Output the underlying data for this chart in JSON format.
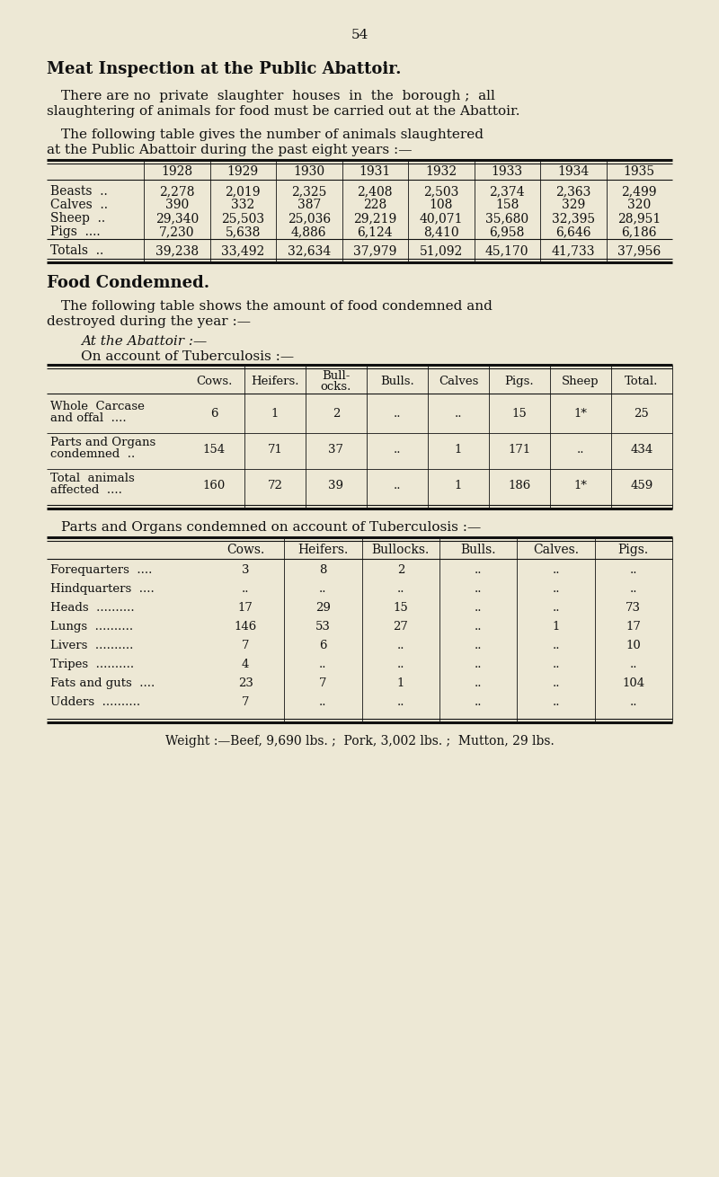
{
  "bg_color": "#ede8d5",
  "page_number": "54",
  "title": "Meat Inspection at the Public Abattoir.",
  "table1_headers": [
    "1928",
    "1929",
    "1930",
    "1931",
    "1932",
    "1933",
    "1934",
    "1935"
  ],
  "table1_rows": [
    [
      "Beasts  ..",
      "2,278",
      "2,019",
      "2,325",
      "2,408",
      "2,503",
      "2,374",
      "2,363",
      "2,499"
    ],
    [
      "Calves  ..",
      "390",
      "332",
      "387",
      "228",
      "108",
      "158",
      "329",
      "320"
    ],
    [
      "Sheep  ..",
      "29,340",
      "25,503",
      "25,036",
      "29,219",
      "40,071",
      "35,680",
      "32,395",
      "28,951"
    ],
    [
      "Pigs  ....",
      "7,230",
      "5,638",
      "4,886",
      "6,124",
      "8,410",
      "6,958",
      "6,646",
      "6,186"
    ]
  ],
  "table1_totals": [
    "Totals  ..",
    "39,238",
    "33,492",
    "32,634",
    "37,979",
    "51,092",
    "45,170",
    "41,733",
    "37,956"
  ],
  "food_condemned_title": "Food Condemned.",
  "table2_headers": [
    "",
    "Cows.",
    "Heifers.",
    "Bull-\nocks.",
    "Bulls.",
    "Calves",
    "Pigs.",
    "Sheep",
    "Total."
  ],
  "table2_rows": [
    [
      "Whole  Carcase\nand offal  ....",
      "6",
      "1",
      "2",
      "..",
      "..",
      "15",
      "1*",
      "25"
    ],
    [
      "Parts and Organs\ncondemned  ..",
      "154",
      "71",
      "37",
      "..",
      "1",
      "171",
      "..",
      "434"
    ],
    [
      "Total  animals\naffected  ....",
      "160",
      "72",
      "39",
      "..",
      "1",
      "186",
      "1*",
      "459"
    ]
  ],
  "parts_organs_title": "Parts and Organs condemned on account of Tuberculosis :—",
  "table3_headers": [
    "",
    "Cows.",
    "Heifers.",
    "Bullocks.",
    "Bulls.",
    "Calves.",
    "Pigs."
  ],
  "table3_rows": [
    [
      "Forequarters  ....",
      "3",
      "8",
      "2",
      "..",
      "..",
      ".."
    ],
    [
      "Hindquarters  ....",
      "..",
      "..",
      "..",
      "..",
      "..",
      ".."
    ],
    [
      "Heads  ..........",
      "17",
      "29",
      "15",
      "..",
      "..",
      "73"
    ],
    [
      "Lungs  ..........",
      "146",
      "53",
      "27",
      "..",
      "1",
      "17"
    ],
    [
      "Livers  ..........",
      "7",
      "6",
      "..",
      "..",
      "..",
      "10"
    ],
    [
      "Tripes  ..........",
      "4",
      "..",
      "..",
      "..",
      "..",
      ".."
    ],
    [
      "Fats and guts  ....",
      "23",
      "7",
      "1",
      "..",
      "..",
      "104"
    ],
    [
      "Udders  ..........",
      "7",
      "..",
      "..",
      "..",
      "..",
      ".."
    ]
  ],
  "weight_note": "Weight :—Beef, 9,690 lbs. ;  Pork, 3,002 lbs. ;  Mutton, 29 lbs."
}
